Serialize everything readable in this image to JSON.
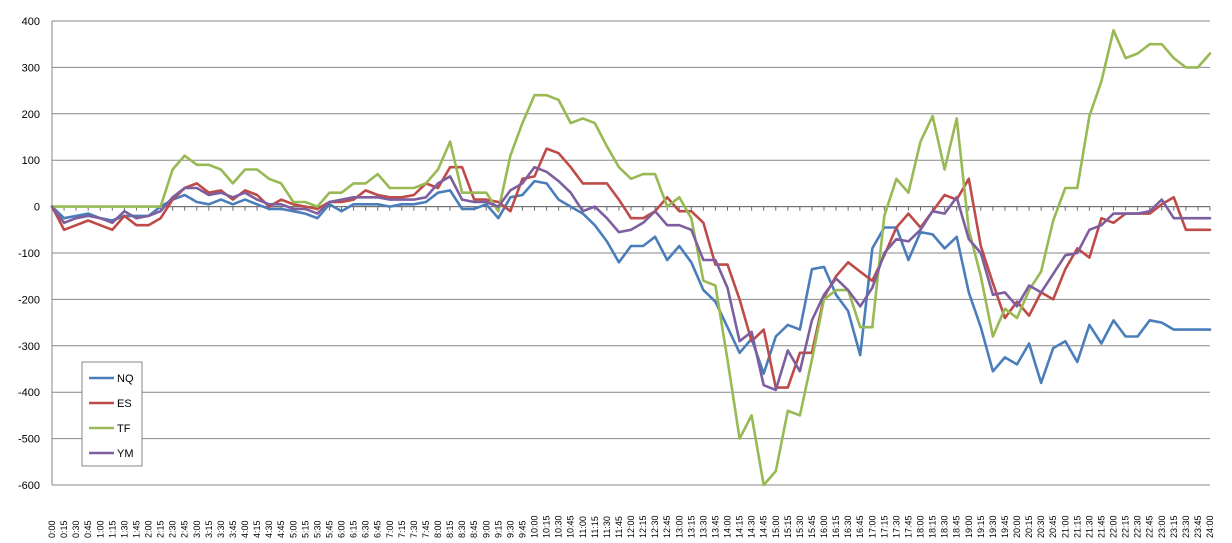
{
  "chart_data": {
    "type": "line",
    "title": "",
    "xlabel": "",
    "ylabel": "",
    "ylim": [
      -600,
      400
    ],
    "yticks": [
      400,
      300,
      200,
      100,
      0,
      -100,
      -200,
      -300,
      -400,
      -500,
      -600
    ],
    "grid": "horizontal",
    "legend_position": "bottom-left",
    "x": [
      "0:00",
      "0:15",
      "0:30",
      "0:45",
      "1:00",
      "1:15",
      "1:30",
      "1:45",
      "2:00",
      "2:15",
      "2:30",
      "2:45",
      "3:00",
      "3:15",
      "3:30",
      "3:45",
      "4:00",
      "4:15",
      "4:30",
      "4:45",
      "5:00",
      "5:15",
      "5:30",
      "5:45",
      "6:00",
      "6:15",
      "6:30",
      "6:45",
      "7:00",
      "7:15",
      "7:30",
      "7:45",
      "8:00",
      "8:15",
      "8:30",
      "8:45",
      "9:00",
      "9:15",
      "9:30",
      "9:45",
      "10:00",
      "10:15",
      "10:30",
      "10:45",
      "11:00",
      "11:15",
      "11:30",
      "11:45",
      "12:00",
      "12:15",
      "12:30",
      "12:45",
      "13:00",
      "13:15",
      "13:30",
      "13:45",
      "14:00",
      "14:15",
      "14:30",
      "14:45",
      "15:00",
      "15:15",
      "15:30",
      "15:45",
      "16:00",
      "16:15",
      "16:30",
      "16:45",
      "17:00",
      "17:15",
      "17:30",
      "17:45",
      "18:00",
      "18:15",
      "18:30",
      "18:45",
      "19:00",
      "19:15",
      "19:30",
      "19:45",
      "20:00",
      "20:15",
      "20:30",
      "20:45",
      "21:00",
      "21:15",
      "21:30",
      "21:45",
      "22:00",
      "22:15",
      "22:30",
      "22:45",
      "23:00",
      "23:15",
      "23:30",
      "23:45",
      "24:00"
    ],
    "series": [
      {
        "name": "NQ",
        "color": "#4a7ebb",
        "values": [
          0,
          -25,
          -20,
          -15,
          -25,
          -30,
          -20,
          -20,
          -20,
          0,
          15,
          25,
          10,
          5,
          15,
          5,
          15,
          5,
          -5,
          -5,
          -10,
          -15,
          -25,
          5,
          -10,
          5,
          5,
          5,
          0,
          5,
          5,
          10,
          30,
          35,
          -5,
          -5,
          5,
          -25,
          20,
          25,
          55,
          50,
          15,
          0,
          -15,
          -40,
          -75,
          -120,
          -85,
          -85,
          -65,
          -115,
          -85,
          -120,
          -180,
          -205,
          -260,
          -315,
          -285,
          -360,
          -280,
          -255,
          -265,
          -135,
          -130,
          -190,
          -225,
          -320,
          -90,
          -45,
          -45,
          -115,
          -55,
          -60,
          -90,
          -65,
          -185,
          -260,
          -355,
          -325,
          -340,
          -295,
          -380,
          -305,
          -290,
          -335,
          -255,
          -295,
          -245,
          -280,
          -280,
          -245,
          -250,
          -265,
          -265,
          -265,
          -265
        ]
      },
      {
        "name": "ES",
        "color": "#be4b48",
        "values": [
          0,
          -50,
          -40,
          -30,
          -40,
          -50,
          -20,
          -40,
          -40,
          -25,
          15,
          40,
          50,
          30,
          35,
          15,
          35,
          25,
          0,
          15,
          5,
          0,
          -5,
          10,
          10,
          15,
          35,
          25,
          20,
          20,
          25,
          50,
          40,
          85,
          85,
          15,
          15,
          10,
          -10,
          60,
          65,
          125,
          115,
          85,
          50,
          50,
          50,
          15,
          -25,
          -25,
          -10,
          20,
          -10,
          -10,
          -35,
          -125,
          -125,
          -200,
          -290,
          -265,
          -390,
          -390,
          -315,
          -315,
          -195,
          -150,
          -120,
          -140,
          -160,
          -105,
          -45,
          -15,
          -45,
          -10,
          25,
          15,
          60,
          -85,
          -165,
          -240,
          -205,
          -235,
          -185,
          -200,
          -135,
          -90,
          -110,
          -25,
          -35,
          -15,
          -15,
          -15,
          5,
          20,
          -50,
          -50,
          -50
        ]
      },
      {
        "name": "TF",
        "color": "#98b954",
        "values": [
          0,
          0,
          0,
          0,
          0,
          0,
          0,
          0,
          0,
          0,
          80,
          110,
          90,
          90,
          80,
          50,
          80,
          80,
          60,
          50,
          10,
          10,
          0,
          30,
          30,
          50,
          50,
          70,
          40,
          40,
          40,
          50,
          80,
          140,
          30,
          30,
          30,
          -10,
          110,
          180,
          240,
          240,
          230,
          180,
          190,
          180,
          130,
          85,
          60,
          70,
          70,
          0,
          20,
          -25,
          -160,
          -170,
          -330,
          -500,
          -450,
          -600,
          -570,
          -440,
          -450,
          -330,
          -200,
          -180,
          -180,
          -260,
          -260,
          -20,
          60,
          30,
          140,
          195,
          80,
          190,
          -50,
          -150,
          -280,
          -220,
          -240,
          -180,
          -140,
          -30,
          40,
          40,
          195,
          270,
          380,
          320,
          330,
          350,
          350,
          320,
          300,
          300,
          330
        ]
      },
      {
        "name": "YM",
        "color": "#7d5fa0",
        "values": [
          0,
          -35,
          -25,
          -20,
          -25,
          -35,
          -10,
          -25,
          -20,
          -10,
          20,
          40,
          40,
          25,
          30,
          20,
          30,
          15,
          5,
          5,
          -5,
          -5,
          -15,
          10,
          15,
          20,
          20,
          20,
          15,
          15,
          15,
          20,
          50,
          65,
          15,
          10,
          10,
          0,
          35,
          50,
          85,
          75,
          55,
          30,
          -10,
          0,
          -25,
          -55,
          -50,
          -35,
          -10,
          -40,
          -40,
          -50,
          -115,
          -115,
          -175,
          -290,
          -270,
          -385,
          -395,
          -310,
          -355,
          -245,
          -190,
          -155,
          -180,
          -215,
          -175,
          -100,
          -70,
          -75,
          -50,
          -10,
          -15,
          20,
          -70,
          -100,
          -190,
          -185,
          -215,
          -170,
          -185,
          -145,
          -105,
          -100,
          -50,
          -40,
          -15,
          -15,
          -15,
          -10,
          15,
          -25,
          -25,
          -25,
          -25
        ]
      }
    ]
  }
}
